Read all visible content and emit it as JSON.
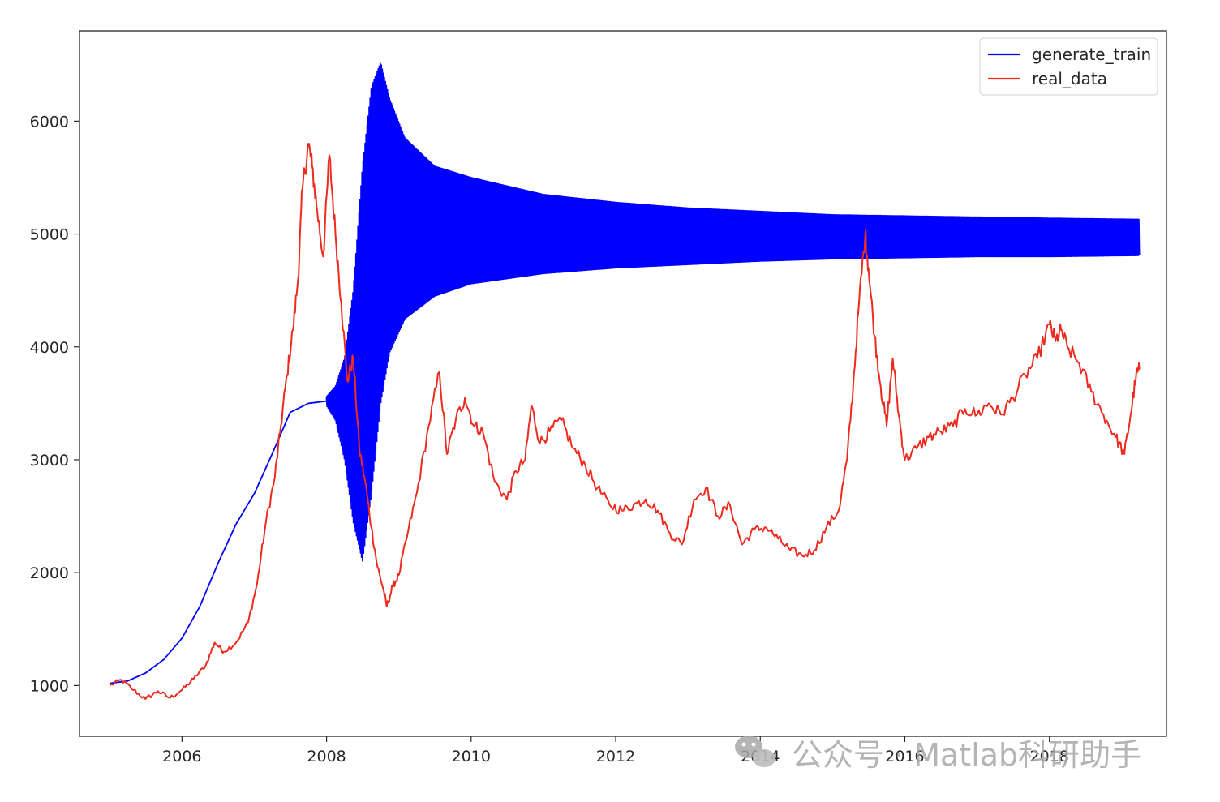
{
  "chart_data": {
    "type": "line",
    "title": "",
    "xlabel": "",
    "ylabel": "",
    "xlim": [
      "2004-08-01",
      "2019-08-15"
    ],
    "ylim": [
      550,
      6800
    ],
    "x_ticks": [
      "2006",
      "2008",
      "2010",
      "2012",
      "2014",
      "2016",
      "2018"
    ],
    "y_ticks": [
      "1000",
      "2000",
      "3000",
      "4000",
      "5000",
      "6000"
    ],
    "grid": false,
    "legend_position": "top-right",
    "series": [
      {
        "name": "generate_train",
        "color": "#0000ff",
        "points": [
          [
            "2005-01-01",
            1020
          ],
          [
            "2005-04-01",
            1040
          ],
          [
            "2005-07-01",
            1110
          ],
          [
            "2005-10-01",
            1230
          ],
          [
            "2006-01-01",
            1420
          ],
          [
            "2006-04-01",
            1700
          ],
          [
            "2006-07-01",
            2080
          ],
          [
            "2006-10-01",
            2430
          ],
          [
            "2007-01-01",
            2700
          ],
          [
            "2007-04-01",
            3050
          ],
          [
            "2007-07-01",
            3420
          ],
          [
            "2007-10-01",
            3500
          ],
          [
            "2008-01-01",
            3520
          ]
        ],
        "oscillation": {
          "start": "2008-01-01",
          "end": "2019-03-31",
          "upper_envelope": [
            [
              "2008-01-01",
              3560
            ],
            [
              "2008-02-15",
              3650
            ],
            [
              "2008-04-01",
              3900
            ],
            [
              "2008-05-15",
              4500
            ],
            [
              "2008-07-01",
              5600
            ],
            [
              "2008-08-15",
              6300
            ],
            [
              "2008-10-01",
              6520
            ],
            [
              "2008-11-15",
              6200
            ],
            [
              "2009-02-01",
              5850
            ],
            [
              "2009-07-01",
              5600
            ],
            [
              "2010-01-01",
              5500
            ],
            [
              "2011-01-01",
              5350
            ],
            [
              "2012-01-01",
              5280
            ],
            [
              "2013-01-01",
              5230
            ],
            [
              "2014-01-01",
              5200
            ],
            [
              "2015-01-01",
              5170
            ],
            [
              "2016-01-01",
              5160
            ],
            [
              "2017-01-01",
              5150
            ],
            [
              "2018-01-01",
              5140
            ],
            [
              "2019-03-31",
              5130
            ]
          ],
          "lower_envelope": [
            [
              "2008-01-01",
              3480
            ],
            [
              "2008-02-15",
              3350
            ],
            [
              "2008-04-01",
              3000
            ],
            [
              "2008-05-15",
              2450
            ],
            [
              "2008-07-01",
              2100
            ],
            [
              "2008-08-15",
              2700
            ],
            [
              "2008-10-01",
              3500
            ],
            [
              "2008-11-15",
              3950
            ],
            [
              "2009-02-01",
              4250
            ],
            [
              "2009-07-01",
              4450
            ],
            [
              "2010-01-01",
              4560
            ],
            [
              "2011-01-01",
              4650
            ],
            [
              "2012-01-01",
              4700
            ],
            [
              "2013-01-01",
              4730
            ],
            [
              "2014-01-01",
              4760
            ],
            [
              "2015-01-01",
              4780
            ],
            [
              "2016-01-01",
              4790
            ],
            [
              "2017-01-01",
              4800
            ],
            [
              "2018-01-01",
              4800
            ],
            [
              "2019-03-31",
              4810
            ]
          ]
        }
      },
      {
        "name": "real_data",
        "color": "#ee2b1f",
        "points": [
          [
            "2005-01-01",
            1000
          ],
          [
            "2005-03-01",
            1050
          ],
          [
            "2005-05-01",
            960
          ],
          [
            "2005-07-01",
            880
          ],
          [
            "2005-09-01",
            950
          ],
          [
            "2005-11-01",
            890
          ],
          [
            "2006-01-01",
            960
          ],
          [
            "2006-03-01",
            1060
          ],
          [
            "2006-05-01",
            1180
          ],
          [
            "2006-06-15",
            1380
          ],
          [
            "2006-08-01",
            1300
          ],
          [
            "2006-10-01",
            1380
          ],
          [
            "2006-12-01",
            1560
          ],
          [
            "2007-01-15",
            1900
          ],
          [
            "2007-03-01",
            2450
          ],
          [
            "2007-04-15",
            2850
          ],
          [
            "2007-05-15",
            3300
          ],
          [
            "2007-06-15",
            3750
          ],
          [
            "2007-07-15",
            4150
          ],
          [
            "2007-08-10",
            4600
          ],
          [
            "2007-09-01",
            5400
          ],
          [
            "2007-10-01",
            5800
          ],
          [
            "2007-10-20",
            5600
          ],
          [
            "2007-11-15",
            5200
          ],
          [
            "2007-12-15",
            4800
          ],
          [
            "2008-01-15",
            5700
          ],
          [
            "2008-02-15",
            5000
          ],
          [
            "2008-03-15",
            4400
          ],
          [
            "2008-04-15",
            3700
          ],
          [
            "2008-05-15",
            3900
          ],
          [
            "2008-06-15",
            3100
          ],
          [
            "2008-07-15",
            2800
          ],
          [
            "2008-08-15",
            2400
          ],
          [
            "2008-09-15",
            2050
          ],
          [
            "2008-10-15",
            1850
          ],
          [
            "2008-11-01",
            1700
          ],
          [
            "2008-12-01",
            1880
          ],
          [
            "2009-01-01",
            1980
          ],
          [
            "2009-02-15",
            2350
          ],
          [
            "2009-04-01",
            2700
          ],
          [
            "2009-06-01",
            3300
          ],
          [
            "2009-07-25",
            3780
          ],
          [
            "2009-09-01",
            3050
          ],
          [
            "2009-10-15",
            3350
          ],
          [
            "2009-12-01",
            3550
          ],
          [
            "2010-01-15",
            3300
          ],
          [
            "2010-03-01",
            3250
          ],
          [
            "2010-05-01",
            2800
          ],
          [
            "2010-07-01",
            2650
          ],
          [
            "2010-08-15",
            2900
          ],
          [
            "2010-10-01",
            3000
          ],
          [
            "2010-11-01",
            3480
          ],
          [
            "2010-12-15",
            3150
          ],
          [
            "2011-02-01",
            3250
          ],
          [
            "2011-04-01",
            3350
          ],
          [
            "2011-06-01",
            3100
          ],
          [
            "2011-08-01",
            2950
          ],
          [
            "2011-10-01",
            2750
          ],
          [
            "2011-12-01",
            2600
          ],
          [
            "2012-02-01",
            2550
          ],
          [
            "2012-04-01",
            2600
          ],
          [
            "2012-06-01",
            2650
          ],
          [
            "2012-08-01",
            2550
          ],
          [
            "2012-10-01",
            2350
          ],
          [
            "2012-12-01",
            2250
          ],
          [
            "2013-02-01",
            2650
          ],
          [
            "2013-04-01",
            2750
          ],
          [
            "2013-06-01",
            2500
          ],
          [
            "2013-08-01",
            2600
          ],
          [
            "2013-10-01",
            2250
          ],
          [
            "2013-12-01",
            2380
          ],
          [
            "2014-02-01",
            2400
          ],
          [
            "2014-04-01",
            2300
          ],
          [
            "2014-06-01",
            2200
          ],
          [
            "2014-08-01",
            2150
          ],
          [
            "2014-10-01",
            2200
          ],
          [
            "2014-12-01",
            2400
          ],
          [
            "2015-02-01",
            2550
          ],
          [
            "2015-03-15",
            3000
          ],
          [
            "2015-04-15",
            3650
          ],
          [
            "2015-05-15",
            4400
          ],
          [
            "2015-06-15",
            5000
          ],
          [
            "2015-07-01",
            4700
          ],
          [
            "2015-08-01",
            4100
          ],
          [
            "2015-09-01",
            3650
          ],
          [
            "2015-10-01",
            3300
          ],
          [
            "2015-11-01",
            3900
          ],
          [
            "2015-12-01",
            3400
          ],
          [
            "2016-01-01",
            3000
          ],
          [
            "2016-03-01",
            3100
          ],
          [
            "2016-05-01",
            3200
          ],
          [
            "2016-07-01",
            3250
          ],
          [
            "2016-09-01",
            3300
          ],
          [
            "2016-11-01",
            3450
          ],
          [
            "2017-01-01",
            3400
          ],
          [
            "2017-03-01",
            3500
          ],
          [
            "2017-05-01",
            3400
          ],
          [
            "2017-07-01",
            3550
          ],
          [
            "2017-09-01",
            3750
          ],
          [
            "2017-11-01",
            3900
          ],
          [
            "2018-01-01",
            4200
          ],
          [
            "2018-02-01",
            4050
          ],
          [
            "2018-03-01",
            4150
          ],
          [
            "2018-04-01",
            4000
          ],
          [
            "2018-06-01",
            3850
          ],
          [
            "2018-08-01",
            3600
          ],
          [
            "2018-10-01",
            3400
          ],
          [
            "2018-12-01",
            3200
          ],
          [
            "2019-01-15",
            3050
          ],
          [
            "2019-02-15",
            3400
          ],
          [
            "2019-03-15",
            3750
          ],
          [
            "2019-03-31",
            3800
          ]
        ]
      }
    ]
  },
  "watermark": {
    "text": "公众号 · Matlab科研助手",
    "icon": "wechat-icon"
  }
}
